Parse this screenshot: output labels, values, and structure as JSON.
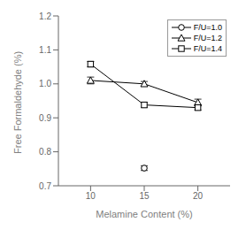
{
  "chart_data": {
    "type": "line",
    "x": [
      10,
      15,
      20
    ],
    "series": [
      {
        "name": "F/U=1.0",
        "color": "black",
        "marker": "circle",
        "values": [
          null,
          0.752,
          null
        ],
        "yerr": [
          null,
          0.007,
          null
        ]
      },
      {
        "name": "F/U=1.2",
        "color": "black",
        "marker": "triangle",
        "values": [
          1.01,
          1.0,
          0.945
        ],
        "yerr": [
          0.01,
          0.007,
          0.01
        ]
      },
      {
        "name": "F/U=1.4",
        "color": "black",
        "marker": "square",
        "values": [
          1.058,
          0.938,
          0.93
        ],
        "yerr": [
          0.008,
          0.007,
          0.007
        ]
      }
    ],
    "xlabel": "Melamine Content (%)",
    "ylabel": "Free Formaldehyde (%)",
    "xlim": [
      7,
      23
    ],
    "ylim": [
      0.7,
      1.2
    ],
    "xticks": [
      10,
      15,
      20
    ],
    "yticks": [
      0.7,
      0.8,
      0.9,
      {
        "value": 1.0,
        "label": "1.0"
      },
      1.1,
      1.2
    ],
    "legend": "upper right",
    "grid": false
  }
}
